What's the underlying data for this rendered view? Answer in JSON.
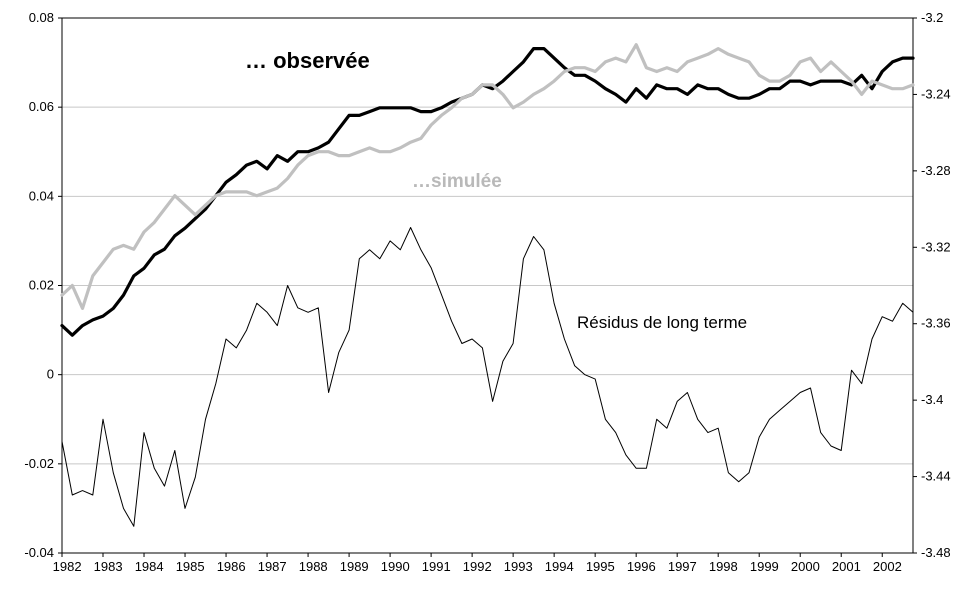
{
  "chart_data": {
    "type": "line",
    "title": "",
    "grid": "horizontal",
    "legend_position": "none",
    "colors": {
      "observee": "#000000",
      "simulee": "#c0c0c0",
      "residus": "#000000",
      "grid": "#c8c8c8",
      "frame": "#000000",
      "background": "#ffffff"
    },
    "x_tick_labels": [
      "1982",
      "1983",
      "1984",
      "1985",
      "1986",
      "1987",
      "1988",
      "1989",
      "1990",
      "1991",
      "1992",
      "1993",
      "1994",
      "1995",
      "1996",
      "1997",
      "1998",
      "1999",
      "2000",
      "2001",
      "2002"
    ],
    "x_frequency": "quarterly",
    "left_axis": {
      "min": -0.04,
      "max": 0.08,
      "ticks": [
        0.08,
        0.06,
        0.04,
        0.02,
        0,
        -0.02,
        -0.04
      ],
      "tick_labels": [
        "0.08",
        "0.06",
        "0.04",
        "0.02",
        "0",
        "-0.02",
        "-0.04"
      ]
    },
    "right_axis": {
      "min": -3.48,
      "max": -3.2,
      "ticks": [
        -3.2,
        -3.24,
        -3.28,
        -3.32,
        -3.36,
        -3.4,
        -3.44,
        -3.48
      ],
      "tick_labels": [
        "-3.2",
        "-3.24",
        "-3.28",
        "-3.32",
        "-3.36",
        "-3.4",
        "-3.44",
        "-3.48"
      ]
    },
    "series": [
      {
        "name": "observée",
        "axis": "right",
        "color": "#000000",
        "width": 3.2,
        "values": [
          -3.361,
          -3.366,
          -3.361,
          -3.358,
          -3.356,
          -3.352,
          -3.345,
          -3.335,
          -3.331,
          -3.324,
          -3.321,
          -3.314,
          -3.31,
          -3.305,
          -3.3,
          -3.293,
          -3.286,
          -3.282,
          -3.277,
          -3.275,
          -3.279,
          -3.272,
          -3.275,
          -3.27,
          -3.27,
          -3.268,
          -3.265,
          -3.258,
          -3.251,
          -3.251,
          -3.249,
          -3.247,
          -3.247,
          -3.247,
          -3.247,
          -3.249,
          -3.249,
          -3.247,
          -3.244,
          -3.242,
          -3.24,
          -3.235,
          -3.237,
          -3.233,
          -3.228,
          -3.223,
          -3.216,
          -3.216,
          -3.221,
          -3.226,
          -3.23,
          -3.23,
          -3.233,
          -3.237,
          -3.24,
          -3.244,
          -3.237,
          -3.242,
          -3.235,
          -3.237,
          -3.237,
          -3.24,
          -3.235,
          -3.237,
          -3.237,
          -3.24,
          -3.242,
          -3.242,
          -3.24,
          -3.237,
          -3.237,
          -3.233,
          -3.233,
          -3.235,
          -3.233,
          -3.233,
          -3.233,
          -3.235,
          -3.23,
          -3.237,
          -3.228,
          -3.223,
          -3.221,
          -3.221
        ]
      },
      {
        "name": "simulée",
        "axis": "right",
        "color": "#c0c0c0",
        "width": 3.2,
        "values": [
          -3.345,
          -3.34,
          -3.352,
          -3.335,
          -3.328,
          -3.321,
          -3.319,
          -3.321,
          -3.312,
          -3.307,
          -3.3,
          -3.293,
          -3.298,
          -3.303,
          -3.298,
          -3.293,
          -3.291,
          -3.291,
          -3.291,
          -3.293,
          -3.291,
          -3.289,
          -3.284,
          -3.277,
          -3.272,
          -3.27,
          -3.27,
          -3.272,
          -3.272,
          -3.27,
          -3.268,
          -3.27,
          -3.27,
          -3.268,
          -3.265,
          -3.263,
          -3.256,
          -3.251,
          -3.247,
          -3.242,
          -3.24,
          -3.235,
          -3.235,
          -3.24,
          -3.247,
          -3.244,
          -3.24,
          -3.237,
          -3.233,
          -3.228,
          -3.226,
          -3.226,
          -3.228,
          -3.223,
          -3.221,
          -3.223,
          -3.214,
          -3.226,
          -3.228,
          -3.226,
          -3.228,
          -3.223,
          -3.221,
          -3.219,
          -3.216,
          -3.219,
          -3.221,
          -3.223,
          -3.23,
          -3.233,
          -3.233,
          -3.23,
          -3.223,
          -3.221,
          -3.228,
          -3.223,
          -3.228,
          -3.233,
          -3.24,
          -3.233,
          -3.235,
          -3.237,
          -3.237,
          -3.235
        ]
      },
      {
        "name": "Résidus de long terme",
        "axis": "left",
        "color": "#000000",
        "width": 1,
        "values": [
          -0.015,
          -0.027,
          -0.026,
          -0.027,
          -0.01,
          -0.022,
          -0.03,
          -0.034,
          -0.013,
          -0.021,
          -0.025,
          -0.017,
          -0.03,
          -0.023,
          -0.01,
          -0.002,
          0.008,
          0.006,
          0.01,
          0.016,
          0.014,
          0.011,
          0.02,
          0.015,
          0.014,
          0.015,
          -0.004,
          0.005,
          0.01,
          0.026,
          0.028,
          0.026,
          0.03,
          0.028,
          0.033,
          0.028,
          0.024,
          0.018,
          0.012,
          0.007,
          0.008,
          0.006,
          -0.006,
          0.003,
          0.007,
          0.026,
          0.031,
          0.028,
          0.016,
          0.008,
          0.002,
          0.0,
          -0.001,
          -0.01,
          -0.013,
          -0.018,
          -0.021,
          -0.021,
          -0.01,
          -0.012,
          -0.006,
          -0.004,
          -0.01,
          -0.013,
          -0.012,
          -0.022,
          -0.024,
          -0.022,
          -0.014,
          -0.01,
          -0.008,
          -0.006,
          -0.004,
          -0.003,
          -0.013,
          -0.016,
          -0.017,
          0.001,
          -0.002,
          0.008,
          0.013,
          0.012,
          0.016,
          0.014
        ]
      }
    ],
    "annotations": [
      {
        "text": "… observée",
        "color": "#000000",
        "bold": true
      },
      {
        "text": "…simulée",
        "color": "#b9b9b9",
        "bold": true
      },
      {
        "text": "Résidus de long terme",
        "color": "#000000",
        "bold": false
      }
    ]
  }
}
